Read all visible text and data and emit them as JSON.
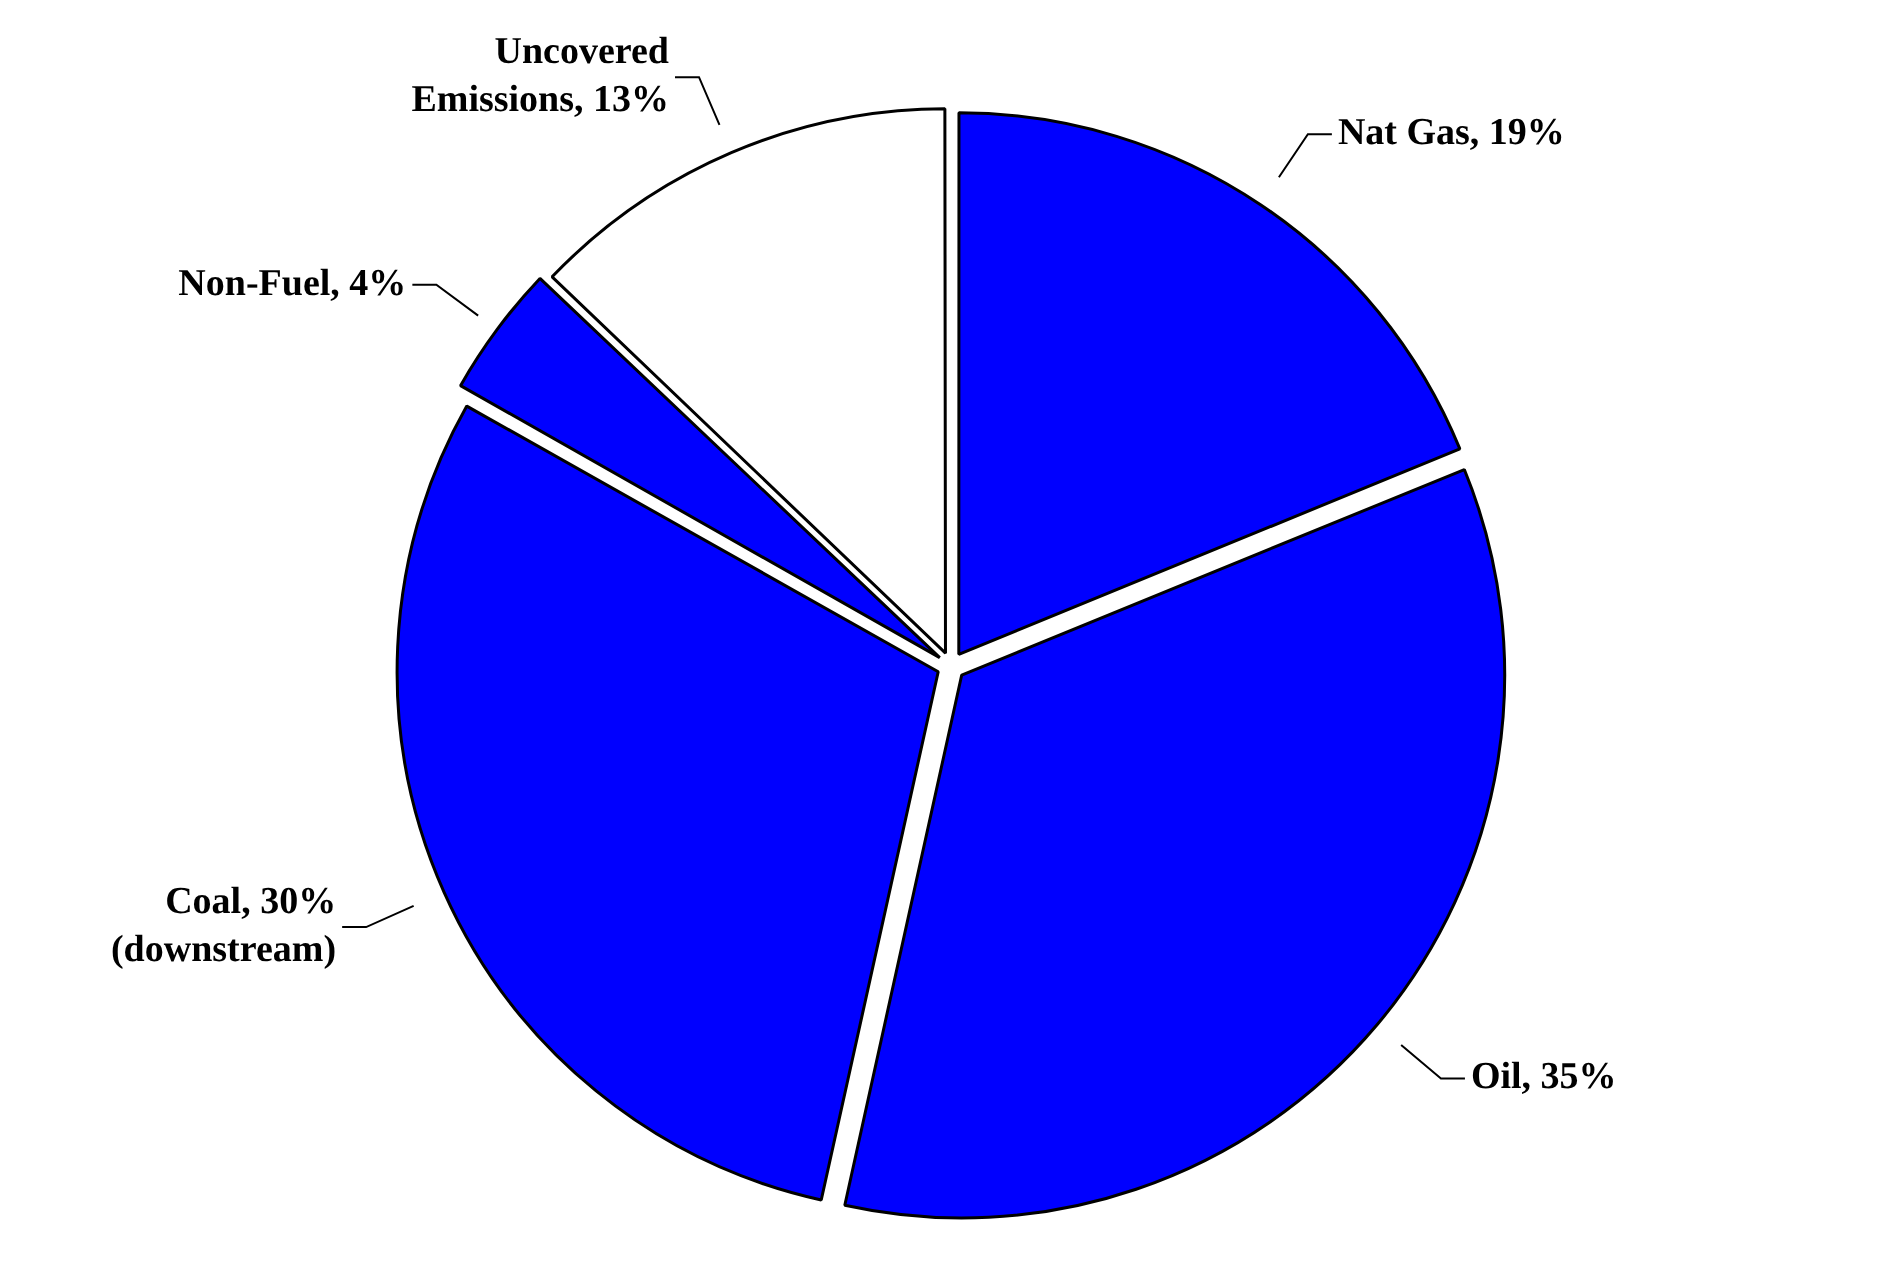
{
  "chart_data": {
    "type": "pie",
    "categories": [
      "Nat Gas, 19%",
      "Oil, 35%",
      "Coal, 30% (downstream)",
      "Non-Fuel, 4%",
      "Uncovered Emissions, 13%"
    ],
    "values": [
      19,
      35,
      30,
      4,
      13
    ],
    "colors": [
      "#0000ff",
      "#0000ff",
      "#0000ff",
      "#0000ff",
      "#ffffff"
    ],
    "legend": false
  }
}
